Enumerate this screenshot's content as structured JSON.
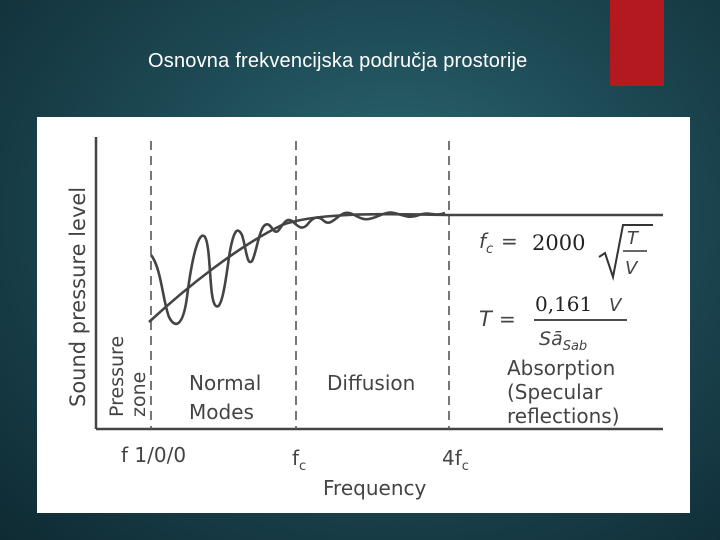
{
  "slide": {
    "title": "Osnovna frekvencijska područja prostorije",
    "accent_color": "#b3191e"
  },
  "figure": {
    "y_axis_label": "Sound pressure level",
    "x_axis_label": "Frequency",
    "ticks": {
      "t1": "f 1/0/0",
      "fc_base": "f",
      "fc_sub": "c",
      "f4_base": "4f",
      "f4_sub": "c"
    },
    "regions": {
      "pressure_line1": "Pressure",
      "pressure_line2": "zone",
      "normal_line1": "Normal",
      "normal_line2": "Modes",
      "diffusion": "Diffusion",
      "absorption_line1": "Absorption",
      "absorption_line2": "(Specular",
      "absorption_line3": "reflections)"
    },
    "formula_fc": {
      "lhs_base": "f",
      "lhs_sub": "c",
      "equals": "=",
      "constant": "2000",
      "numerator": "T",
      "denominator": "V"
    },
    "formula_t": {
      "lhs": "T",
      "equals": "=",
      "numerator_const": "0,161",
      "numerator_var": "V",
      "denominator_S": "S",
      "denominator_a": "ā",
      "denominator_sub": "Sab"
    }
  }
}
